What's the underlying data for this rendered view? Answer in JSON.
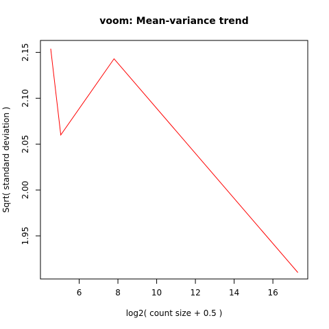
{
  "chart_data": {
    "type": "line",
    "title": "voom: Mean-variance trend",
    "xlabel": "log2( count size + 0.5 )",
    "ylabel": "Sqrt( standard deviation )",
    "xlim": [
      4.0,
      17.8
    ],
    "ylim": [
      1.903,
      2.163
    ],
    "xticks": [
      6,
      8,
      10,
      12,
      14,
      16
    ],
    "yticks": [
      1.95,
      2.0,
      2.05,
      2.1,
      2.15
    ],
    "ytick_labels": [
      "1.95",
      "2.00",
      "2.05",
      "2.10",
      "2.15"
    ],
    "grid": false,
    "legend": "none",
    "series": [
      {
        "color": "#ff0000",
        "x": [
          4.53,
          5.05,
          7.8,
          17.29
        ],
        "y": [
          2.154,
          2.06,
          2.143,
          1.91
        ]
      }
    ]
  }
}
